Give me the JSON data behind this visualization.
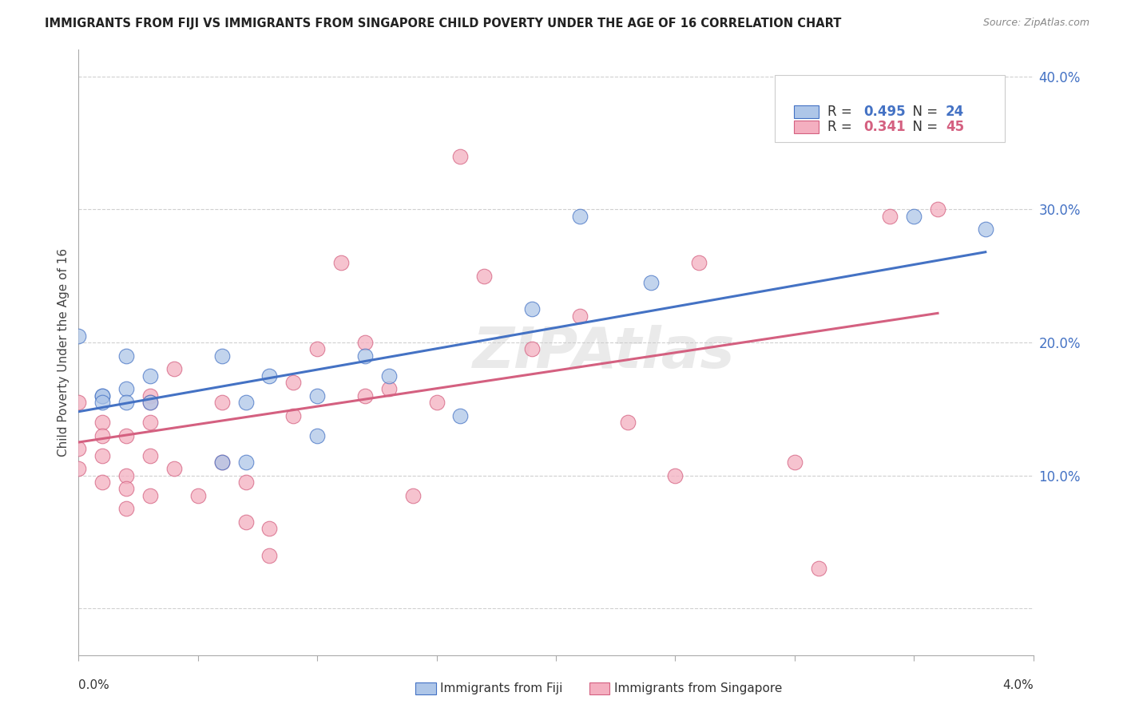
{
  "title": "IMMIGRANTS FROM FIJI VS IMMIGRANTS FROM SINGAPORE CHILD POVERTY UNDER THE AGE OF 16 CORRELATION CHART",
  "source": "Source: ZipAtlas.com",
  "ylabel": "Child Poverty Under the Age of 16",
  "fiji_R": 0.495,
  "fiji_N": 24,
  "singapore_R": 0.341,
  "singapore_N": 45,
  "fiji_color": "#aec6e8",
  "fiji_line_color": "#4472c4",
  "singapore_color": "#f4afc0",
  "singapore_line_color": "#d46080",
  "background_color": "#ffffff",
  "grid_color": "#d0d0d0",
  "label_color": "#4472c4",
  "yticks": [
    0.0,
    0.1,
    0.2,
    0.3,
    0.4
  ],
  "ytick_labels": [
    "",
    "10.0%",
    "20.0%",
    "30.0%",
    "40.0%"
  ],
  "xmin": 0.0,
  "xmax": 0.04,
  "ymin": -0.035,
  "ymax": 0.42,
  "fiji_scatter_x": [
    0.0,
    0.001,
    0.001,
    0.001,
    0.002,
    0.002,
    0.002,
    0.003,
    0.003,
    0.006,
    0.006,
    0.007,
    0.007,
    0.008,
    0.01,
    0.01,
    0.012,
    0.013,
    0.016,
    0.019,
    0.021,
    0.024,
    0.035,
    0.038
  ],
  "fiji_scatter_y": [
    0.205,
    0.16,
    0.16,
    0.155,
    0.19,
    0.165,
    0.155,
    0.175,
    0.155,
    0.19,
    0.11,
    0.11,
    0.155,
    0.175,
    0.16,
    0.13,
    0.19,
    0.175,
    0.145,
    0.225,
    0.295,
    0.245,
    0.295,
    0.285
  ],
  "fiji_line_x": [
    0.0,
    0.038
  ],
  "fiji_line_y": [
    0.148,
    0.268
  ],
  "singapore_scatter_x": [
    0.0,
    0.0,
    0.0,
    0.001,
    0.001,
    0.001,
    0.001,
    0.002,
    0.002,
    0.002,
    0.002,
    0.003,
    0.003,
    0.003,
    0.003,
    0.003,
    0.004,
    0.004,
    0.005,
    0.006,
    0.006,
    0.007,
    0.007,
    0.008,
    0.008,
    0.009,
    0.009,
    0.01,
    0.011,
    0.012,
    0.012,
    0.013,
    0.014,
    0.015,
    0.016,
    0.017,
    0.019,
    0.021,
    0.023,
    0.025,
    0.026,
    0.03,
    0.031,
    0.034,
    0.036
  ],
  "singapore_scatter_y": [
    0.155,
    0.12,
    0.105,
    0.14,
    0.13,
    0.115,
    0.095,
    0.13,
    0.1,
    0.09,
    0.075,
    0.16,
    0.155,
    0.14,
    0.115,
    0.085,
    0.18,
    0.105,
    0.085,
    0.155,
    0.11,
    0.095,
    0.065,
    0.06,
    0.04,
    0.17,
    0.145,
    0.195,
    0.26,
    0.2,
    0.16,
    0.165,
    0.085,
    0.155,
    0.34,
    0.25,
    0.195,
    0.22,
    0.14,
    0.1,
    0.26,
    0.11,
    0.03,
    0.295,
    0.3
  ],
  "singapore_line_x": [
    0.0,
    0.036
  ],
  "singapore_line_y": [
    0.125,
    0.222
  ],
  "watermark": "ZIPAtlas",
  "bottom_legend_labels": [
    "Immigrants from Fiji",
    "Immigrants from Singapore"
  ]
}
